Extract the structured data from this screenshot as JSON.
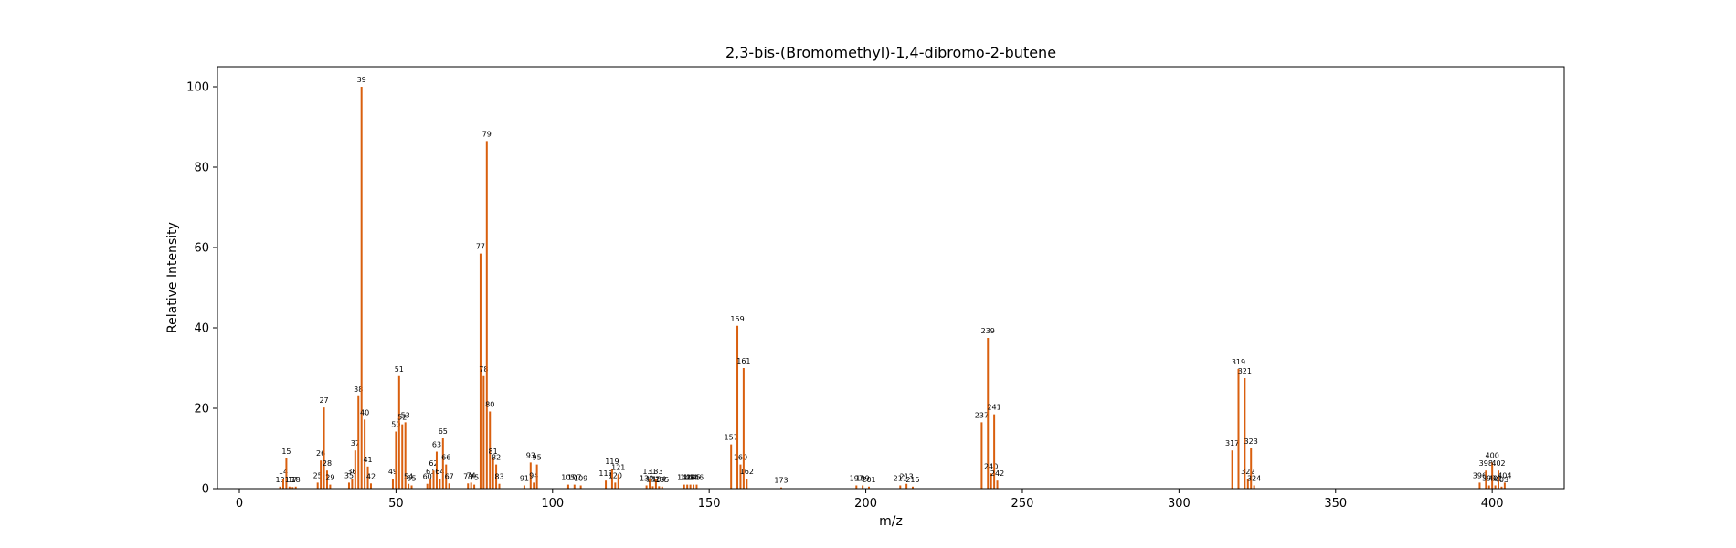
{
  "chart_data": {
    "type": "bar",
    "title": "2,3-bis-(Bromomethyl)-1,4-dibromo-2-butene",
    "xlabel": "m/z",
    "ylabel": "Relative Intensity",
    "xlim": [
      -7,
      423
    ],
    "ylim": [
      0,
      105
    ],
    "xticks": [
      0,
      50,
      100,
      150,
      200,
      250,
      300,
      350,
      400
    ],
    "yticks": [
      0,
      20,
      40,
      60,
      80,
      100
    ],
    "grid": false,
    "bar_color": "#d95f0e",
    "peaks": [
      {
        "x": 13,
        "y": 0.5,
        "label": "13"
      },
      {
        "x": 14,
        "y": 2.5,
        "label": "14"
      },
      {
        "x": 15,
        "y": 7.5,
        "label": "15"
      },
      {
        "x": 16,
        "y": 0.5,
        "label": "16"
      },
      {
        "x": 17,
        "y": 0.4,
        "label": "17"
      },
      {
        "x": 18,
        "y": 0.5,
        "label": "18"
      },
      {
        "x": 25,
        "y": 1.5,
        "label": "25"
      },
      {
        "x": 26,
        "y": 7,
        "label": "26"
      },
      {
        "x": 27,
        "y": 20.2,
        "label": "27"
      },
      {
        "x": 28,
        "y": 4.5,
        "label": "28"
      },
      {
        "x": 29,
        "y": 1,
        "label": "29"
      },
      {
        "x": 35,
        "y": 1.5,
        "label": "35"
      },
      {
        "x": 36,
        "y": 2.5,
        "label": "36"
      },
      {
        "x": 37,
        "y": 9.5,
        "label": "37"
      },
      {
        "x": 38,
        "y": 23,
        "label": "38"
      },
      {
        "x": 39,
        "y": 100,
        "label": "39"
      },
      {
        "x": 40,
        "y": 17.2,
        "label": "40"
      },
      {
        "x": 41,
        "y": 5.5,
        "label": "41"
      },
      {
        "x": 42,
        "y": 1.3,
        "label": "42"
      },
      {
        "x": 49,
        "y": 2.5,
        "label": "49"
      },
      {
        "x": 50,
        "y": 14.2,
        "label": "50"
      },
      {
        "x": 51,
        "y": 28,
        "label": "51"
      },
      {
        "x": 52,
        "y": 16,
        "label": "52"
      },
      {
        "x": 53,
        "y": 16.5,
        "label": "53"
      },
      {
        "x": 54,
        "y": 1.2,
        "label": "54"
      },
      {
        "x": 55,
        "y": 0.8,
        "label": "55"
      },
      {
        "x": 60,
        "y": 1.2,
        "label": "60"
      },
      {
        "x": 61,
        "y": 2.5,
        "label": "61"
      },
      {
        "x": 62,
        "y": 4.5,
        "label": "62"
      },
      {
        "x": 63,
        "y": 9.2,
        "label": "63"
      },
      {
        "x": 64,
        "y": 2.5,
        "label": "64"
      },
      {
        "x": 65,
        "y": 12.5,
        "label": "65"
      },
      {
        "x": 66,
        "y": 6,
        "label": "66"
      },
      {
        "x": 67,
        "y": 1.3,
        "label": "67"
      },
      {
        "x": 73,
        "y": 1.3,
        "label": "73"
      },
      {
        "x": 74,
        "y": 1.5,
        "label": "74"
      },
      {
        "x": 75,
        "y": 1,
        "label": "75"
      },
      {
        "x": 77,
        "y": 58.5,
        "label": "77"
      },
      {
        "x": 78,
        "y": 28,
        "label": "78"
      },
      {
        "x": 79,
        "y": 86.5,
        "label": "79"
      },
      {
        "x": 80,
        "y": 19.2,
        "label": "80"
      },
      {
        "x": 81,
        "y": 7.5,
        "label": "81"
      },
      {
        "x": 82,
        "y": 6,
        "label": "82"
      },
      {
        "x": 83,
        "y": 1.2,
        "label": "83"
      },
      {
        "x": 91,
        "y": 0.8,
        "label": "91"
      },
      {
        "x": 93,
        "y": 6.5,
        "label": "93"
      },
      {
        "x": 94,
        "y": 1.5,
        "label": "94"
      },
      {
        "x": 95,
        "y": 6,
        "label": "95"
      },
      {
        "x": 105,
        "y": 1,
        "label": "105"
      },
      {
        "x": 107,
        "y": 1,
        "label": "107"
      },
      {
        "x": 109,
        "y": 0.8,
        "label": "109"
      },
      {
        "x": 117,
        "y": 2,
        "label": "117"
      },
      {
        "x": 119,
        "y": 5,
        "label": "119"
      },
      {
        "x": 120,
        "y": 1.5,
        "label": "120"
      },
      {
        "x": 121,
        "y": 3.5,
        "label": "121"
      },
      {
        "x": 130,
        "y": 0.8,
        "label": "130"
      },
      {
        "x": 131,
        "y": 2.5,
        "label": "131"
      },
      {
        "x": 132,
        "y": 0.6,
        "label": "132"
      },
      {
        "x": 133,
        "y": 2.5,
        "label": "133"
      },
      {
        "x": 134,
        "y": 0.6,
        "label": "134"
      },
      {
        "x": 135,
        "y": 0.5,
        "label": "135"
      },
      {
        "x": 142,
        "y": 1,
        "label": "142"
      },
      {
        "x": 143,
        "y": 1,
        "label": "143"
      },
      {
        "x": 144,
        "y": 1,
        "label": "144"
      },
      {
        "x": 145,
        "y": 1,
        "label": "145"
      },
      {
        "x": 146,
        "y": 1,
        "label": "146"
      },
      {
        "x": 157,
        "y": 11,
        "label": "157"
      },
      {
        "x": 159,
        "y": 40.5,
        "label": "159"
      },
      {
        "x": 160,
        "y": 6,
        "label": "160"
      },
      {
        "x": 161,
        "y": 30,
        "label": "161"
      },
      {
        "x": 162,
        "y": 2.5,
        "label": "162"
      },
      {
        "x": 173,
        "y": 0.3,
        "label": "173"
      },
      {
        "x": 197,
        "y": 0.8,
        "label": "197"
      },
      {
        "x": 199,
        "y": 0.8,
        "label": "199"
      },
      {
        "x": 201,
        "y": 0.5,
        "label": "201"
      },
      {
        "x": 211,
        "y": 0.8,
        "label": "211"
      },
      {
        "x": 213,
        "y": 1.2,
        "label": "213"
      },
      {
        "x": 215,
        "y": 0.5,
        "label": "215"
      },
      {
        "x": 237,
        "y": 16.5,
        "label": "237"
      },
      {
        "x": 239,
        "y": 37.5,
        "label": "239"
      },
      {
        "x": 240,
        "y": 3.8,
        "label": "240"
      },
      {
        "x": 241,
        "y": 18.5,
        "label": "241"
      },
      {
        "x": 242,
        "y": 2,
        "label": "242"
      },
      {
        "x": 317,
        "y": 9.5,
        "label": "317"
      },
      {
        "x": 319,
        "y": 29.8,
        "label": "319"
      },
      {
        "x": 321,
        "y": 27.5,
        "label": "321"
      },
      {
        "x": 322,
        "y": 2.5,
        "label": "322"
      },
      {
        "x": 323,
        "y": 10,
        "label": "323"
      },
      {
        "x": 324,
        "y": 0.8,
        "label": "324"
      },
      {
        "x": 396,
        "y": 1.5,
        "label": "396"
      },
      {
        "x": 398,
        "y": 4.5,
        "label": "398"
      },
      {
        "x": 399,
        "y": 0.8,
        "label": "399"
      },
      {
        "x": 400,
        "y": 6.5,
        "label": "400"
      },
      {
        "x": 401,
        "y": 0.8,
        "label": "401"
      },
      {
        "x": 402,
        "y": 4.5,
        "label": "402"
      },
      {
        "x": 403,
        "y": 0.5,
        "label": "403"
      },
      {
        "x": 404,
        "y": 1.5,
        "label": "404"
      }
    ]
  }
}
